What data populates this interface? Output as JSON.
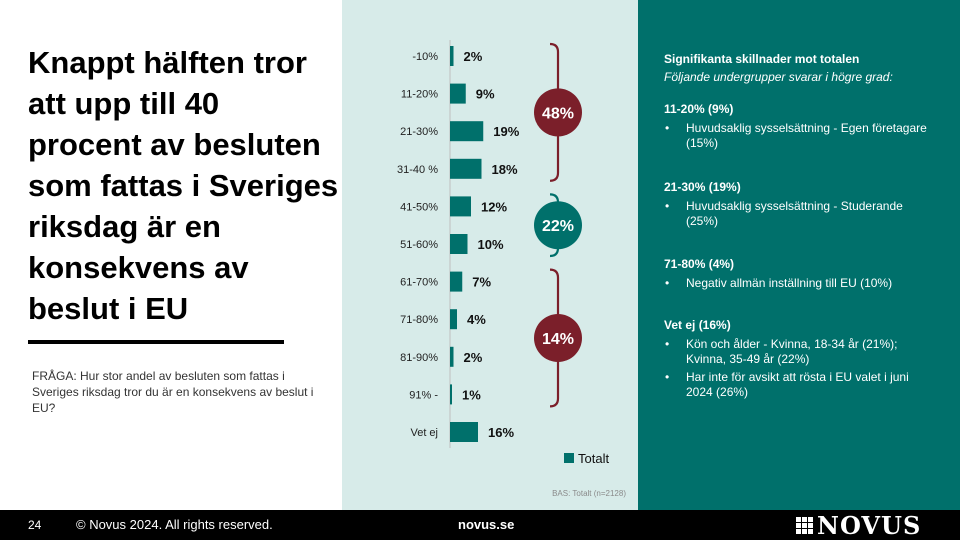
{
  "headline": "Knappt hälften tror att upp till 40 procent av besluten som fattas i Sveriges riksdag är en konsekvens av beslut i EU",
  "question": "FRÅGA: Hur stor andel av besluten som fattas i Sveriges riksdag tror du är en konsekvens av beslut i EU?",
  "base_note": "BAS: Totalt (n=2128)",
  "colors": {
    "bar": "#00706b",
    "group_high": "#7b1f2a",
    "group_mid": "#00706b",
    "panel": "#d7ebe9"
  },
  "chart_data": {
    "type": "bar",
    "orientation": "horizontal",
    "categories": [
      "-10%",
      "11-20%",
      "21-30%",
      "31-40 %",
      "41-50%",
      "51-60%",
      "61-70%",
      "71-80%",
      "81-90%",
      "91% -",
      "Vet ej"
    ],
    "series": [
      {
        "name": "Totalt",
        "values": [
          2,
          9,
          19,
          18,
          12,
          10,
          7,
          4,
          2,
          1,
          16
        ]
      }
    ],
    "value_labels": [
      "2%",
      "9%",
      "19%",
      "18%",
      "12%",
      "10%",
      "7%",
      "4%",
      "2%",
      "1%",
      "16%"
    ],
    "legend": "bottom-right",
    "groups": [
      {
        "label": "48%",
        "from": 0,
        "to": 3,
        "color": "#7b1f2a"
      },
      {
        "label": "22%",
        "from": 4,
        "to": 5,
        "color": "#00706b"
      },
      {
        "label": "14%",
        "from": 6,
        "to": 9,
        "color": "#7b1f2a"
      }
    ]
  },
  "significance": {
    "title": "Signifikanta skillnader mot totalen",
    "subtitle": "Följande undergrupper svarar i högre grad:",
    "groups": [
      {
        "title": "11-20% (9%)",
        "bullets": [
          "Huvudsaklig sysselsättning - Egen företagare (15%)"
        ]
      },
      {
        "title": "21-30% (19%)",
        "bullets": [
          "Huvudsaklig sysselsättning - Studerande (25%)"
        ]
      },
      {
        "title": "71-80% (4%)",
        "bullets": [
          "Negativ allmän inställning till EU (10%)"
        ]
      },
      {
        "title": "Vet ej (16%)",
        "bullets": [
          "Kön och ålder - Kvinna, 18-34 år (21%); Kvinna, 35-49 år (22%)",
          "Har inte för avsikt att rösta i EU valet i juni 2024 (26%)"
        ]
      }
    ]
  },
  "footer": {
    "page_number": "24",
    "copyright": "© Novus 2024. All rights reserved.",
    "site": "novus.se",
    "logo_text": "NOVUS"
  }
}
